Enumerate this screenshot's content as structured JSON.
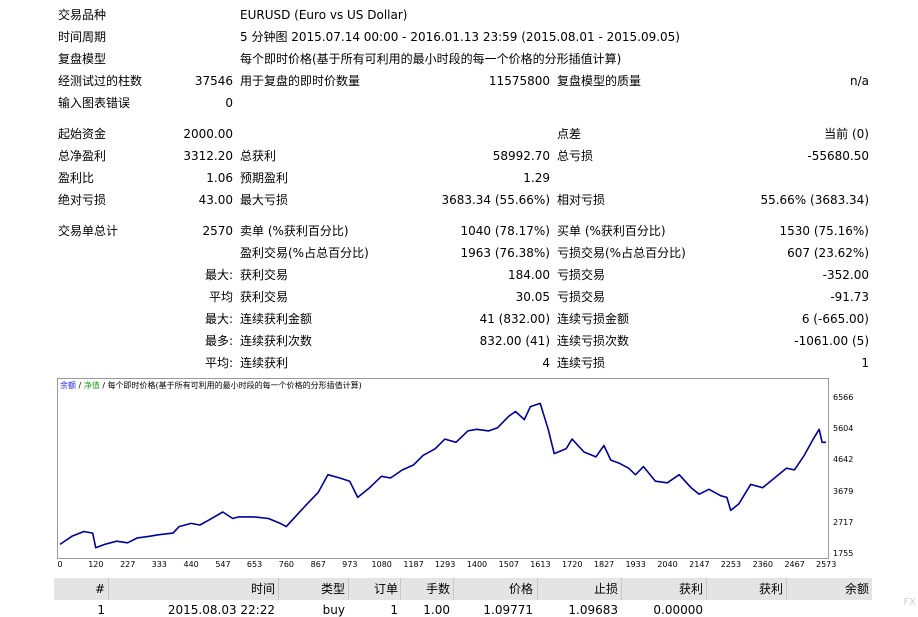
{
  "info": {
    "symbol_label": "交易品种",
    "symbol_value": "EURUSD (Euro vs US Dollar)",
    "period_label": "时间周期",
    "period_value": "5 分钟图 2015.07.14 00:00 - 2016.01.13 23:59 (2015.08.01 - 2015.09.05)",
    "model_label": "复盘模型",
    "model_value": "每个即时价格(基于所有可利用的最小时段的每一个价格的分形插值计算)",
    "bars_label": "经测试过的柱数",
    "bars_value": "37546",
    "ticks_label": "用于复盘的即时价数量",
    "ticks_value": "11575800",
    "quality_label": "复盘模型的质量",
    "quality_value": "n/a",
    "errors_label": "输入图表错误",
    "errors_value": "0"
  },
  "stats": {
    "initial_deposit_label": "起始资金",
    "initial_deposit_value": "2000.00",
    "spread_label": "点差",
    "spread_value": "当前 (0)",
    "net_profit_label": "总净盈利",
    "net_profit_value": "3312.20",
    "gross_profit_label": "总获利",
    "gross_profit_value": "58992.70",
    "gross_loss_label": "总亏损",
    "gross_loss_value": "-55680.50",
    "profit_factor_label": "盈利比",
    "profit_factor_value": "1.06",
    "expected_payoff_label": "预期盈利",
    "expected_payoff_value": "1.29",
    "abs_drawdown_label": "绝对亏损",
    "abs_drawdown_value": "43.00",
    "max_drawdown_label": "最大亏损",
    "max_drawdown_value": "3683.34 (55.66%)",
    "rel_drawdown_label": "相对亏损",
    "rel_drawdown_value": "55.66% (3683.34)",
    "total_trades_label": "交易单总计",
    "total_trades_value": "2570",
    "short_label": "卖单 (%获利百分比)",
    "short_value": "1040 (78.17%)",
    "long_label": "买单 (%获利百分比)",
    "long_value": "1530 (75.16%)",
    "profit_trades_label": "盈利交易(%占总百分比)",
    "profit_trades_value": "1963 (76.38%)",
    "loss_trades_label": "亏损交易(%占总百分比)",
    "loss_trades_value": "607 (23.62%)",
    "largest_prefix": "最大:",
    "largest_profit_label": "获利交易",
    "largest_profit_value": "184.00",
    "largest_loss_label": "亏损交易",
    "largest_loss_value": "-352.00",
    "average_prefix": "平均",
    "average_profit_label": "获利交易",
    "average_profit_value": "30.05",
    "average_loss_label": "亏损交易",
    "average_loss_value": "-91.73",
    "max_consec_prefix": "最大:",
    "max_consec_wins_label": "连续获利金额",
    "max_consec_wins_value": "41 (832.00)",
    "max_consec_losses_label": "连续亏损金额",
    "max_consec_losses_value": "6 (-665.00)",
    "maximal_prefix": "最多:",
    "maximal_consec_profit_label": "连续获利次数",
    "maximal_consec_profit_value": "832.00 (41)",
    "maximal_consec_loss_label": "连续亏损次数",
    "maximal_consec_loss_value": "-1061.00 (5)",
    "avg_consec_prefix": "平均:",
    "avg_consec_wins_label": "连续获利",
    "avg_consec_wins_value": "4",
    "avg_consec_losses_label": "连续亏损",
    "avg_consec_losses_value": "1"
  },
  "chart_data": {
    "type": "line",
    "legend_balance": "余额",
    "legend_sep1": " / ",
    "legend_equity": "净值",
    "legend_sep2": " / ",
    "legend_model": "每个即时价格(基于所有可利用的最小时段的每一个价格的分形插值计算)",
    "line_color": "#00009c",
    "ylim": [
      1755,
      6566
    ],
    "xlim": [
      0,
      2573
    ],
    "y_ticks": [
      "6566",
      "5604",
      "4642",
      "3679",
      "2717",
      "1755"
    ],
    "x_ticks": [
      "0",
      "120",
      "227",
      "333",
      "440",
      "547",
      "653",
      "760",
      "867",
      "973",
      "1080",
      "1187",
      "1293",
      "1400",
      "1507",
      "1613",
      "1720",
      "1827",
      "1933",
      "2040",
      "2147",
      "2253",
      "2360",
      "2467",
      "2573"
    ],
    "series": [
      {
        "x": [
          0,
          40,
          80,
          110,
          120,
          150,
          190,
          227,
          260,
          300,
          333,
          380,
          400,
          440,
          470,
          500,
          547,
          580,
          600,
          653,
          700,
          740,
          760,
          800,
          830,
          867,
          900,
          940,
          973,
          1000,
          1040,
          1080,
          1110,
          1150,
          1187,
          1220,
          1260,
          1293,
          1330,
          1370,
          1400,
          1440,
          1470,
          1507,
          1530,
          1560,
          1580,
          1613,
          1640,
          1660,
          1700,
          1720,
          1760,
          1800,
          1827,
          1850,
          1880,
          1910,
          1933,
          1960,
          2000,
          2040,
          2080,
          2120,
          2147,
          2180,
          2220,
          2240,
          2253,
          2280,
          2320,
          2360,
          2400,
          2440,
          2467,
          2500,
          2530,
          2550,
          2560,
          2573
        ],
        "y": [
          2050,
          2300,
          2450,
          2400,
          1950,
          2050,
          2150,
          2100,
          2250,
          2300,
          2350,
          2400,
          2600,
          2700,
          2650,
          2800,
          3050,
          2850,
          2900,
          2900,
          2850,
          2700,
          2600,
          3000,
          3300,
          3650,
          4200,
          4100,
          4000,
          3500,
          3800,
          4150,
          4100,
          4350,
          4500,
          4800,
          5000,
          5300,
          5200,
          5550,
          5600,
          5550,
          5650,
          6000,
          6150,
          5900,
          6300,
          6400,
          5600,
          4850,
          5000,
          5300,
          4900,
          4750,
          5100,
          4650,
          4550,
          4400,
          4200,
          4450,
          4000,
          3950,
          4200,
          3800,
          3600,
          3750,
          3550,
          3500,
          3100,
          3300,
          3900,
          3800,
          4100,
          4400,
          4350,
          4800,
          5300,
          5600,
          5200,
          5200
        ]
      }
    ]
  },
  "table": {
    "headers": [
      "#",
      "时间",
      "类型",
      "订单",
      "手数",
      "价格",
      "止损",
      "获利",
      "获利",
      "余额"
    ],
    "rows": [
      [
        "1",
        "2015.08.03 22:22",
        "buy",
        "1",
        "1.00",
        "1.09771",
        "1.09683",
        "0.00000",
        "",
        ""
      ]
    ]
  },
  "watermark": "FX"
}
